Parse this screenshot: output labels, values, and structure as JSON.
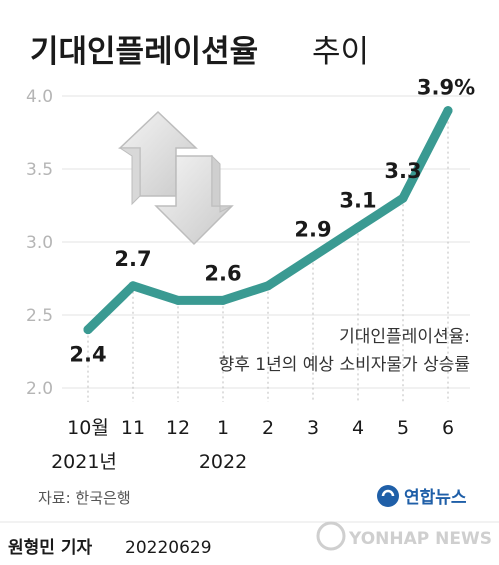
{
  "title_bold": "기대인플레이션율",
  "title_light": "추이",
  "chart_data": {
    "type": "line",
    "categories": [
      "10월",
      "11",
      "12",
      "1",
      "2",
      "3",
      "4",
      "5",
      "6"
    ],
    "year_labels": [
      "2021년",
      "",
      "",
      "2022",
      "",
      "",
      "",
      "",
      ""
    ],
    "values": [
      2.4,
      2.7,
      2.6,
      2.6,
      2.7,
      2.9,
      3.1,
      3.3,
      3.9
    ],
    "data_labels": [
      "2.4",
      "2.7",
      "",
      "2.6",
      "",
      "2.9",
      "3.1",
      "3.3",
      "3.9%"
    ],
    "ylim": [
      2.0,
      4.0
    ],
    "yticks": [
      "2.0",
      "2.5",
      "3.0",
      "3.5",
      "4.0"
    ],
    "line_color": "#3a9a92",
    "grid": "horizontal"
  },
  "note": {
    "line1": "기대인플레이션율:",
    "line2": "향후 1년의 예상 소비자물가 상승률"
  },
  "source": "자료: 한국은행",
  "logo_text": "연합뉴스",
  "footer": {
    "author": "원형민 기자",
    "date": "20220629",
    "agency": "YONHAP NEWS"
  },
  "icon": "up-down-arrows-icon"
}
